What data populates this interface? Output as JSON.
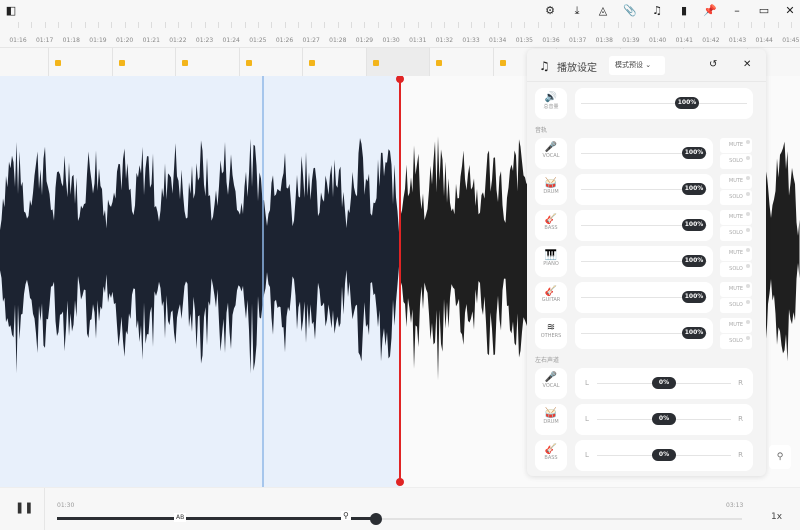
{
  "topbar": {
    "icons": [
      "sidebar-toggle-icon",
      "gear-icon",
      "download-icon",
      "metronome-icon",
      "paperclip-icon",
      "music-note-icon",
      "bookmark-icon",
      "pin-icon",
      "minimize-icon",
      "maximize-icon",
      "close-icon"
    ]
  },
  "ruler": {
    "labels": [
      "01:16",
      "01:17",
      "01:18",
      "01:19",
      "01:20",
      "01:21",
      "01:22",
      "01:23",
      "01:24",
      "01:25",
      "01:26",
      "01:27",
      "01:28",
      "01:29",
      "01:30",
      "01:31",
      "01:32",
      "01:33",
      "01:34",
      "01:35",
      "01:36",
      "01:37",
      "01:38",
      "01:39",
      "01:40",
      "01:41",
      "01:42",
      "01:43",
      "01:44",
      "01:45"
    ]
  },
  "colors": {
    "accent": "#e02424",
    "selection": "#e8f0fb",
    "selection_line": "#8fb8e8",
    "lock": "#f3b51b",
    "wave_selected": "#1c2331",
    "wave": "#1f1f1f"
  },
  "panel": {
    "title": "播放设定",
    "preset": "模式预设",
    "master": {
      "label": "总音量",
      "value": "100%"
    },
    "tracks_label": "音轨",
    "mute": "MUTE",
    "solo": "SOLO",
    "tracks": [
      {
        "name": "VOCAL",
        "icon": "microphone-icon",
        "glyph": "🎤",
        "value": "100%"
      },
      {
        "name": "DRUM",
        "icon": "drum-icon",
        "glyph": "🥁",
        "value": "100%"
      },
      {
        "name": "BASS",
        "icon": "guitar-icon",
        "glyph": "🎸",
        "value": "100%"
      },
      {
        "name": "PIANO",
        "icon": "piano-icon",
        "glyph": "🎹",
        "value": "100%"
      },
      {
        "name": "GUITAR",
        "icon": "guitars-icon",
        "glyph": "🎸",
        "value": "100%"
      },
      {
        "name": "OTHERS",
        "icon": "waveform-icon",
        "glyph": "≋",
        "value": "100%"
      }
    ],
    "pan_label": "左右声道",
    "left": "L",
    "right": "R",
    "pans": [
      {
        "name": "VOCAL",
        "icon": "microphone-icon",
        "glyph": "🎤",
        "value": "0%"
      },
      {
        "name": "DRUM",
        "icon": "drum-icon",
        "glyph": "🥁",
        "value": "0%"
      },
      {
        "name": "BASS",
        "icon": "guitar-icon",
        "glyph": "🎸",
        "value": "0%"
      }
    ]
  },
  "player": {
    "current": "01:30",
    "total": "03:13",
    "ab_label": "AB",
    "speed": "1x",
    "progress": 0.466
  }
}
